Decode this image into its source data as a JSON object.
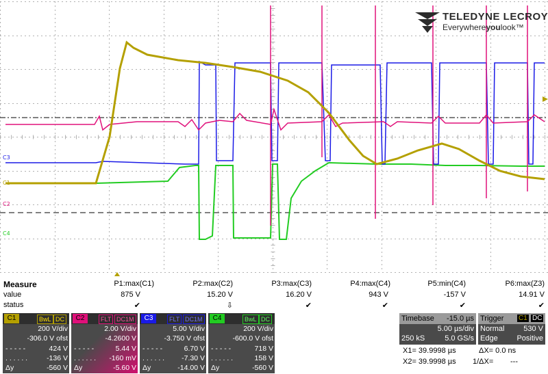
{
  "brand": {
    "name": "TELEDYNE LECROY",
    "tagline_pre": "Everywhere",
    "tagline_bold": "you",
    "tagline_post": "look",
    "tm": "™"
  },
  "channel_labels": {
    "c1": "C1",
    "c2": "C2",
    "c3": "C3",
    "c4": "C4"
  },
  "colors": {
    "c1": "#b4a000",
    "c2": "#e0107a",
    "c3": "#1a1ae6",
    "c4": "#22cc22",
    "grid": "#b0b0b0"
  },
  "measure": {
    "title": "Measure",
    "row_value": "value",
    "row_status": "status",
    "params": [
      {
        "name": "P1:max(C1)",
        "value": "875 V",
        "status": "✔"
      },
      {
        "name": "P2:max(C2)",
        "value": "15.20 V",
        "status": "⇩"
      },
      {
        "name": "P3:max(C3)",
        "value": "16.20 V",
        "status": "✔"
      },
      {
        "name": "P4:max(C4)",
        "value": "943 V",
        "status": "✔"
      },
      {
        "name": "P5:min(C4)",
        "value": "-157 V",
        "status": "✔"
      },
      {
        "name": "P6:max(Z3)",
        "value": "14.91 V",
        "status": "✔"
      }
    ]
  },
  "descriptors": [
    {
      "name": "C1",
      "badge1": "BwL",
      "badge2": "DC",
      "vdiv": "200 V/div",
      "ofst": "-306.0 V ofst",
      "v1": "424 V",
      "v2": "-136 V",
      "dy_label": "Δy",
      "dy": "-560 V"
    },
    {
      "name": "C2",
      "badge1": "FLT",
      "badge2": "DC1M",
      "vdiv": "2.00 V/div",
      "ofst": "-4.2600 V",
      "v1": "5.44 V",
      "v2": "-160 mV",
      "dy_label": "Δy",
      "dy": "-5.60 V"
    },
    {
      "name": "C3",
      "badge1": "FLT",
      "badge2": "DC1M",
      "vdiv": "5.00 V/div",
      "ofst": "-3.750 V ofst",
      "v1": "6.70 V",
      "v2": "-7.30 V",
      "dy_label": "Δy",
      "dy": "-14.00 V"
    },
    {
      "name": "C4",
      "badge1": "BwL",
      "badge2": "DC",
      "vdiv": "200 V/div",
      "ofst": "-600.0 V ofst",
      "v1": "718 V",
      "v2": "158 V",
      "dy_label": "Δy",
      "dy": "-560 V"
    }
  ],
  "timebase": {
    "label": "Timebase",
    "delay": "-15.0 µs",
    "tdiv": "5.00 µs/div",
    "samples": "250 kS",
    "rate": "5.0 GS/s"
  },
  "trigger": {
    "label": "Trigger",
    "ch1": "C1",
    "ch2": "DC",
    "mode": "Normal",
    "level": "530 V",
    "type": "Edge",
    "slope": "Positive"
  },
  "cursors": {
    "x1": "X1= 39.9998 µs",
    "dx": "ΔX= 0.0 ns",
    "x2": "X2= 39.9998 µs",
    "inv": "1/ΔX=",
    "inv_val": "---"
  }
}
